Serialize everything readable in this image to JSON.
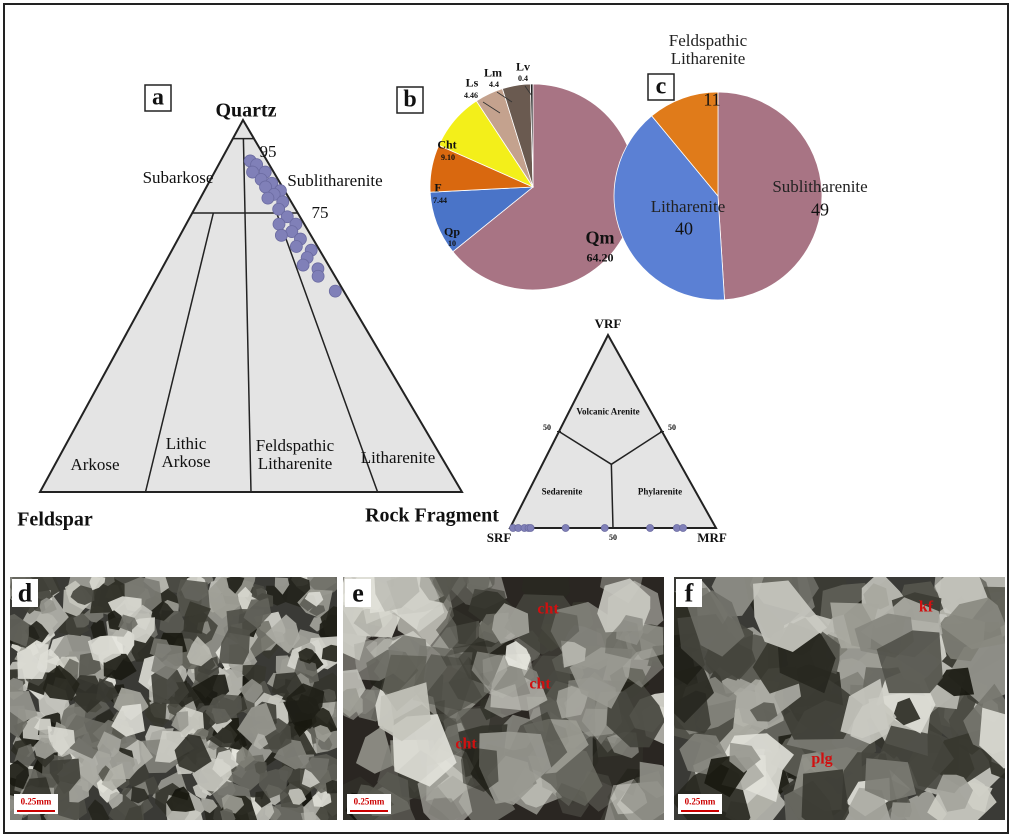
{
  "chart_data": [
    {
      "type": "ternary",
      "panel": "a",
      "apices": [
        "Quartz",
        "Feldspar",
        "Rock Fragment"
      ],
      "fields": [
        "Subarkose",
        "Sublitharenite",
        "Arkose",
        "Lithic Arkose",
        "Feldspathic Litharenite",
        "Litharenite"
      ],
      "ticks": [
        95,
        75
      ],
      "color": "#8080b8",
      "top": [
        89,
        88,
        86,
        86,
        84,
        83,
        82,
        81,
        80,
        79,
        78,
        76,
        74,
        72,
        72,
        70,
        69,
        68,
        66,
        65,
        63,
        61,
        60,
        58,
        54
      ],
      "left": [
        4,
        3,
        5,
        2,
        4,
        2,
        4,
        1,
        3,
        5,
        2,
        4,
        3,
        6,
        2,
        4,
        7,
        3,
        5,
        2,
        4,
        6,
        3,
        4,
        2
      ],
      "right": [
        7,
        9,
        9,
        12,
        12,
        15,
        14,
        18,
        17,
        16,
        20,
        20,
        23,
        22,
        26,
        26,
        24,
        29,
        29,
        33,
        33,
        33,
        37,
        38,
        44
      ]
    },
    {
      "type": "pie",
      "panel": "b",
      "categories": [
        "Qm",
        "Qp",
        "F",
        "Cht",
        "Ls",
        "Lm",
        "Lv"
      ],
      "values": [
        64.2,
        10,
        7.44,
        9.1,
        4.46,
        4.4,
        0.4
      ],
      "value_labels": [
        "64.20",
        "10",
        "7.44",
        "9.10",
        "4.46",
        "4.4",
        "0.4"
      ],
      "colors": [
        "#a87484",
        "#4a74c8",
        "#d9680f",
        "#f3ef1a",
        "#c4a28e",
        "#6a5a50",
        "#222222"
      ]
    },
    {
      "type": "pie",
      "panel": "c",
      "categories": [
        "Sublitharenite",
        "Litharenite",
        "Feldspathic Litharenite"
      ],
      "values": [
        49,
        40,
        11
      ],
      "colors": [
        "#a87484",
        "#5b80d4",
        "#e07b1a"
      ]
    },
    {
      "type": "ternary",
      "apices": [
        "VRF",
        "SRF",
        "MRF"
      ],
      "fields": [
        "Volcanic Arenite",
        "Sedarenite",
        "Phylarenite"
      ],
      "ticks": [
        50
      ],
      "color": "#8080b8",
      "top": [
        0,
        0,
        0,
        0,
        0,
        0,
        0,
        0,
        0,
        0
      ],
      "left": [
        98.5,
        96,
        93,
        91,
        90,
        73,
        54,
        32,
        19,
        16
      ],
      "right": [
        1.5,
        4,
        7,
        9,
        10,
        27,
        46,
        68,
        81,
        84
      ]
    }
  ],
  "photos": [
    {
      "panel": "d",
      "scale": "0.25mm",
      "annotations": []
    },
    {
      "panel": "e",
      "scale": "0.25mm",
      "annotations": [
        "cht",
        "cht",
        "cht"
      ]
    },
    {
      "panel": "f",
      "scale": "0.25mm",
      "annotations": [
        "kf",
        "plg"
      ]
    }
  ]
}
